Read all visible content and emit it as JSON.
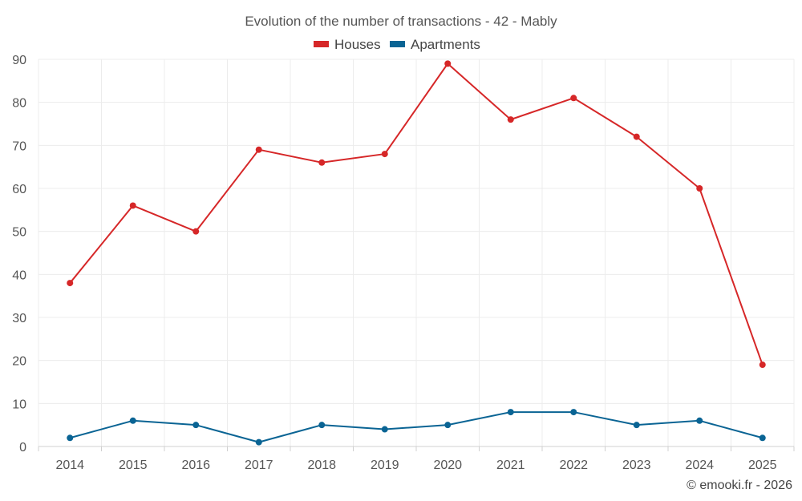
{
  "chart_data": {
    "type": "line",
    "title": "Evolution of the number of transactions - 42 - Mably",
    "categories": [
      "2014",
      "2015",
      "2016",
      "2017",
      "2018",
      "2019",
      "2020",
      "2021",
      "2022",
      "2023",
      "2024",
      "2025"
    ],
    "series": [
      {
        "name": "Houses",
        "color": "#d62728",
        "values": [
          38,
          56,
          50,
          69,
          66,
          68,
          89,
          76,
          81,
          72,
          60,
          19
        ]
      },
      {
        "name": "Apartments",
        "color": "#0a6494",
        "values": [
          2,
          6,
          5,
          1,
          5,
          4,
          5,
          8,
          8,
          5,
          6,
          2
        ]
      }
    ],
    "ylim": [
      0,
      90
    ],
    "yticks": [
      "0",
      "10",
      "20",
      "30",
      "40",
      "50",
      "60",
      "70",
      "80",
      "90"
    ],
    "xlabel": "",
    "ylabel": "",
    "grid": true,
    "legend": "top-center"
  },
  "credit": "© emooki.fr - 2026"
}
